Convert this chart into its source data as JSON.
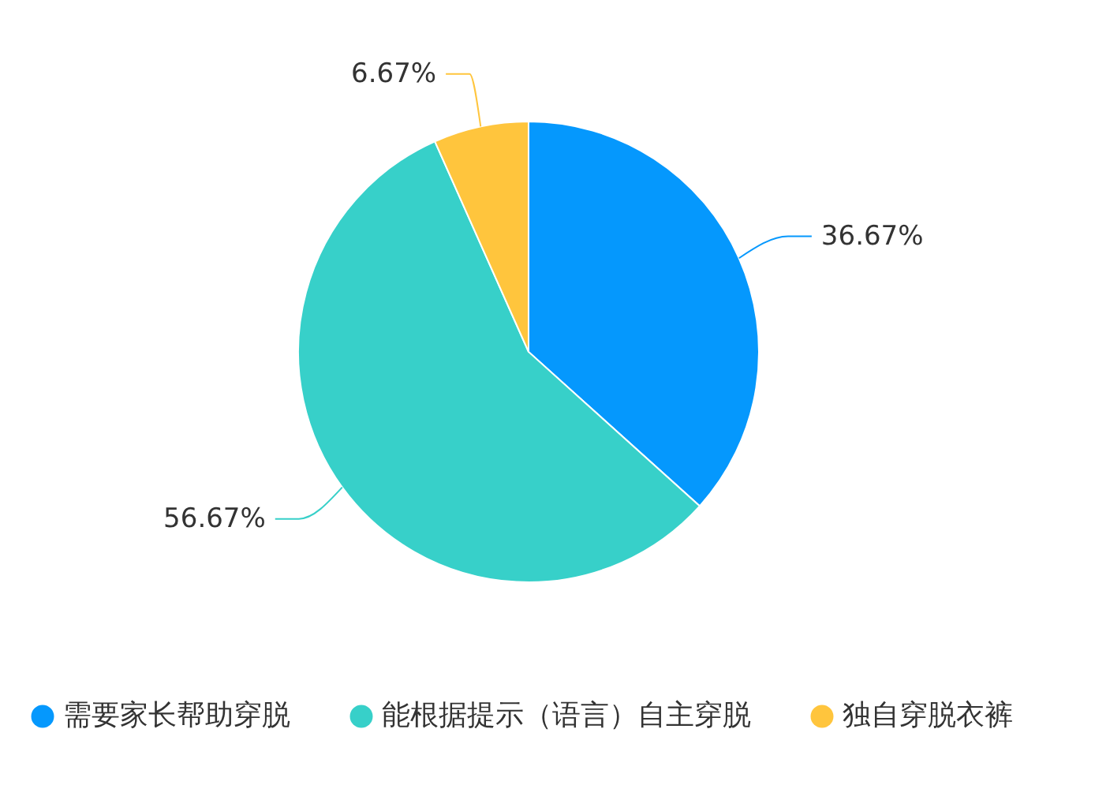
{
  "chart_data": {
    "type": "pie",
    "categories": [
      "需要家长帮助穿脱",
      "能根据提示（语言）自主穿脱",
      "独自穿脱衣裤"
    ],
    "values": [
      36.67,
      56.67,
      6.67
    ],
    "colors": [
      "#0598fd",
      "#37d0c9",
      "#ffc53d"
    ],
    "value_labels": [
      "36.67%",
      "56.67%",
      "6.67%"
    ],
    "legend": "bottom"
  }
}
